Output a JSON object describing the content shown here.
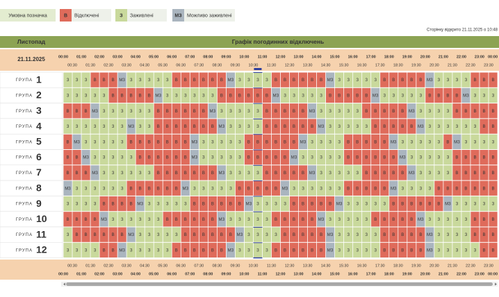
{
  "legend": {
    "title": "Умовна позначка",
    "items": [
      {
        "code": "В",
        "label": "Відключені",
        "color": "#df6b5b"
      },
      {
        "code": "З",
        "label": "Заживлені",
        "color": "#c9d99c"
      },
      {
        "code": "МЗ",
        "label": "Можливо заживлені",
        "color": "#aab5bf"
      }
    ]
  },
  "opened": "Сторінку відкрито 21.11.2025 о 10:48",
  "header": {
    "month": "Листопад",
    "title": "Графік погодинних відключень",
    "date": "21.11.2025"
  },
  "hours": [
    "00:00",
    "01:00",
    "02:00",
    "03:00",
    "04:00",
    "05:00",
    "06:00",
    "07:00",
    "08:00",
    "09:00",
    "10:00",
    "11:00",
    "12:00",
    "13:00",
    "14:00",
    "15:00",
    "16:00",
    "17:00",
    "18:00",
    "19:00",
    "20:00",
    "21:00",
    "22:00",
    "23:00",
    "00:00"
  ],
  "half_hours": [
    "00:30",
    "01:30",
    "02:30",
    "03:30",
    "04:30",
    "05:30",
    "06:30",
    "07:30",
    "08:30",
    "09:30",
    "10:30",
    "11:30",
    "12:30",
    "13:30",
    "14:30",
    "15:30",
    "16:30",
    "17:30",
    "18:30",
    "19:30",
    "20:30",
    "21:30",
    "22:30",
    "23:30"
  ],
  "current_slot": "10:30",
  "group_word": "ГРУПА",
  "groups": [
    {
      "number": 1,
      "cells": [
        "З",
        "З",
        "З",
        "В",
        "В",
        "В",
        "МЗ",
        "З",
        "З",
        "З",
        "З",
        "З",
        "В",
        "В",
        "В",
        "В",
        "В",
        "В",
        "МЗ",
        "З",
        "З",
        "З",
        "З",
        "В",
        "В",
        "В",
        "В",
        "В",
        "В",
        "МЗ",
        "З",
        "З",
        "З",
        "З",
        "З",
        "В",
        "В",
        "В",
        "В",
        "В",
        "МЗ",
        "З",
        "З",
        "З",
        "З",
        "В",
        "В",
        "В"
      ]
    },
    {
      "number": 2,
      "cells": [
        "З",
        "З",
        "З",
        "З",
        "З",
        "В",
        "В",
        "В",
        "В",
        "В",
        "МЗ",
        "З",
        "З",
        "З",
        "З",
        "З",
        "З",
        "В",
        "В",
        "В",
        "В",
        "В",
        "В",
        "МЗ",
        "З",
        "З",
        "З",
        "З",
        "З",
        "В",
        "В",
        "В",
        "В",
        "В",
        "МЗ",
        "З",
        "З",
        "З",
        "З",
        "З",
        "В",
        "В",
        "В",
        "В",
        "МЗ",
        "З",
        "З",
        "З"
      ]
    },
    {
      "number": 3,
      "cells": [
        "В",
        "В",
        "В",
        "МЗ",
        "З",
        "З",
        "З",
        "З",
        "З",
        "З",
        "В",
        "В",
        "В",
        "В",
        "В",
        "В",
        "МЗ",
        "З",
        "З",
        "З",
        "З",
        "З",
        "В",
        "В",
        "В",
        "В",
        "В",
        "МЗ",
        "З",
        "З",
        "З",
        "З",
        "З",
        "В",
        "В",
        "В",
        "В",
        "В",
        "МЗ",
        "З",
        "З",
        "З",
        "З",
        "В",
        "В",
        "В",
        "В",
        "В"
      ]
    },
    {
      "number": 4,
      "cells": [
        "З",
        "З",
        "З",
        "З",
        "З",
        "З",
        "З",
        "МЗ",
        "З",
        "З",
        "В",
        "В",
        "В",
        "В",
        "В",
        "В",
        "В",
        "МЗ",
        "З",
        "З",
        "З",
        "З",
        "В",
        "В",
        "В",
        "В",
        "В",
        "В",
        "МЗ",
        "З",
        "З",
        "З",
        "З",
        "З",
        "В",
        "В",
        "В",
        "В",
        "В",
        "МЗ",
        "З",
        "З",
        "З",
        "З",
        "З",
        "З",
        "В",
        "В"
      ]
    },
    {
      "number": 5,
      "cells": [
        "В",
        "МЗ",
        "З",
        "З",
        "З",
        "З",
        "З",
        "В",
        "В",
        "В",
        "В",
        "В",
        "В",
        "В",
        "МЗ",
        "З",
        "З",
        "З",
        "З",
        "З",
        "В",
        "В",
        "В",
        "В",
        "В",
        "В",
        "МЗ",
        "З",
        "З",
        "З",
        "З",
        "В",
        "В",
        "В",
        "В",
        "В",
        "МЗ",
        "З",
        "З",
        "З",
        "З",
        "З",
        "В",
        "МЗ",
        "З",
        "З",
        "З",
        "З"
      ]
    },
    {
      "number": 6,
      "cells": [
        "В",
        "В",
        "МЗ",
        "З",
        "З",
        "З",
        "З",
        "З",
        "В",
        "В",
        "В",
        "В",
        "В",
        "В",
        "МЗ",
        "З",
        "З",
        "З",
        "З",
        "З",
        "В",
        "В",
        "В",
        "В",
        "В",
        "МЗ",
        "З",
        "З",
        "З",
        "З",
        "З",
        "В",
        "В",
        "В",
        "В",
        "В",
        "В",
        "МЗ",
        "З",
        "З",
        "З",
        "З",
        "З",
        "В",
        "В",
        "В",
        "В",
        "В"
      ]
    },
    {
      "number": 7,
      "cells": [
        "В",
        "В",
        "В",
        "МЗ",
        "З",
        "З",
        "З",
        "З",
        "З",
        "З",
        "В",
        "В",
        "В",
        "В",
        "В",
        "В",
        "В",
        "МЗ",
        "З",
        "З",
        "З",
        "З",
        "В",
        "В",
        "В",
        "В",
        "В",
        "МЗ",
        "З",
        "З",
        "З",
        "З",
        "З",
        "В",
        "В",
        "В",
        "В",
        "В",
        "МЗ",
        "З",
        "З",
        "З",
        "З",
        "В",
        "В",
        "В",
        "В",
        "В"
      ]
    },
    {
      "number": 8,
      "cells": [
        "МЗ",
        "З",
        "З",
        "З",
        "З",
        "З",
        "З",
        "В",
        "В",
        "В",
        "В",
        "В",
        "В",
        "МЗ",
        "З",
        "З",
        "З",
        "З",
        "З",
        "В",
        "В",
        "В",
        "В",
        "В",
        "МЗ",
        "З",
        "З",
        "З",
        "З",
        "З",
        "З",
        "В",
        "В",
        "В",
        "В",
        "В",
        "МЗ",
        "З",
        "З",
        "З",
        "З",
        "В",
        "В",
        "В",
        "В",
        "В",
        "В",
        "В"
      ]
    },
    {
      "number": 9,
      "cells": [
        "З",
        "З",
        "З",
        "З",
        "В",
        "В",
        "В",
        "В",
        "МЗ",
        "З",
        "З",
        "З",
        "З",
        "З",
        "В",
        "В",
        "В",
        "В",
        "В",
        "В",
        "МЗ",
        "З",
        "З",
        "З",
        "З",
        "В",
        "В",
        "В",
        "В",
        "В",
        "МЗ",
        "З",
        "З",
        "З",
        "З",
        "З",
        "В",
        "В",
        "В",
        "В",
        "В",
        "В",
        "МЗ",
        "З",
        "З",
        "З",
        "З",
        "З"
      ]
    },
    {
      "number": 10,
      "cells": [
        "В",
        "В",
        "В",
        "В",
        "МЗ",
        "З",
        "З",
        "З",
        "З",
        "З",
        "З",
        "В",
        "В",
        "В",
        "В",
        "В",
        "В",
        "МЗ",
        "З",
        "З",
        "З",
        "З",
        "З",
        "В",
        "В",
        "В",
        "В",
        "В",
        "МЗ",
        "З",
        "З",
        "З",
        "З",
        "З",
        "В",
        "В",
        "В",
        "В",
        "В",
        "МЗ",
        "З",
        "З",
        "З",
        "З",
        "З",
        "В",
        "В",
        "В"
      ]
    },
    {
      "number": 11,
      "cells": [
        "З",
        "В",
        "В",
        "В",
        "В",
        "В",
        "В",
        "МЗ",
        "З",
        "З",
        "З",
        "З",
        "З",
        "В",
        "В",
        "В",
        "В",
        "В",
        "В",
        "МЗ",
        "З",
        "З",
        "З",
        "З",
        "В",
        "В",
        "В",
        "В",
        "В",
        "МЗ",
        "З",
        "З",
        "З",
        "З",
        "З",
        "В",
        "В",
        "В",
        "В",
        "В",
        "МЗ",
        "З",
        "З",
        "З",
        "З",
        "В",
        "В",
        "В"
      ]
    },
    {
      "number": 12,
      "cells": [
        "З",
        "З",
        "З",
        "З",
        "В",
        "В",
        "МЗ",
        "З",
        "З",
        "З",
        "З",
        "З",
        "В",
        "В",
        "В",
        "В",
        "В",
        "В",
        "МЗ",
        "З",
        "З",
        "З",
        "З",
        "В",
        "В",
        "В",
        "В",
        "В",
        "В",
        "МЗ",
        "З",
        "З",
        "З",
        "З",
        "З",
        "В",
        "В",
        "В",
        "В",
        "В",
        "МЗ",
        "З",
        "З",
        "З",
        "З",
        "З",
        "В",
        "В"
      ]
    }
  ]
}
